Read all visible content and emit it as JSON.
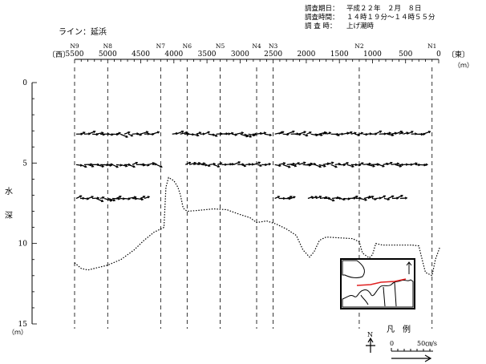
{
  "header": {
    "line_label": "ライン：延浜",
    "survey_date_key": "調査期日：",
    "survey_date_val": "平成２２年　２月　８日",
    "survey_time_key": "調査時間：",
    "survey_time_val": "１４時１９分～１４時５５分",
    "survey_tide_key": "調 査 時：",
    "survey_tide_val": "上げ潮時"
  },
  "axis_text": {
    "west": "〔西〕",
    "east": "〔東〕",
    "unit_m_top": "（ｍ）",
    "depth_label_1": "水",
    "depth_label_2": "深",
    "unit_m_bottom": "（ｍ）"
  },
  "legend": {
    "title": "凡　例",
    "north": "N",
    "scale_zero": "0",
    "scale_value": "50㎝/s"
  },
  "colors": {
    "ink": "#000000",
    "map_line": "#e02020",
    "map_fill": "#ffffff"
  },
  "chart_data": {
    "type": "vector_section",
    "xlim": [
      5500,
      0
    ],
    "ylim": [
      0,
      15
    ],
    "x_ticks": [
      5500,
      5000,
      4500,
      4000,
      3500,
      3000,
      2500,
      2000,
      1500,
      1000,
      500,
      0
    ],
    "y_ticks": [
      0,
      5,
      10,
      15
    ],
    "stations": [
      {
        "name": "N9",
        "x": 5500
      },
      {
        "name": "N8",
        "x": 5000
      },
      {
        "name": "N7",
        "x": 4200
      },
      {
        "name": "N6",
        "x": 3800
      },
      {
        "name": "N5",
        "x": 3300
      },
      {
        "name": "N4",
        "x": 2750
      },
      {
        "name": "N3",
        "x": 2500
      },
      {
        "name": "N2",
        "x": 1200
      },
      {
        "name": "N1",
        "x": 100
      }
    ],
    "current_layers": [
      {
        "depth": 3.2,
        "segments": [
          [
            5500,
            4250
          ],
          [
            4050,
            2550
          ],
          [
            2500,
            150
          ]
        ]
      },
      {
        "depth": 5.1,
        "segments": [
          [
            5500,
            4200
          ],
          [
            3850,
            2550
          ],
          [
            2500,
            150
          ]
        ]
      },
      {
        "depth": 7.2,
        "segments": [
          [
            5500,
            4400
          ],
          [
            2500,
            2200
          ],
          [
            2000,
            550
          ]
        ]
      }
    ],
    "seabed_profile": [
      [
        5500,
        11.2
      ],
      [
        5400,
        11.55
      ],
      [
        5300,
        11.65
      ],
      [
        5150,
        11.5
      ],
      [
        5000,
        11.35
      ],
      [
        4800,
        11.0
      ],
      [
        4600,
        10.4
      ],
      [
        4450,
        9.8
      ],
      [
        4300,
        9.3
      ],
      [
        4150,
        9.0
      ],
      [
        4120,
        6.5
      ],
      [
        4080,
        5.9
      ],
      [
        4000,
        6.1
      ],
      [
        3940,
        6.5
      ],
      [
        3900,
        7.0
      ],
      [
        3860,
        7.8
      ],
      [
        3800,
        8.0
      ],
      [
        3650,
        7.95
      ],
      [
        3400,
        7.85
      ],
      [
        3200,
        7.9
      ],
      [
        3000,
        8.2
      ],
      [
        2850,
        8.4
      ],
      [
        2750,
        8.7
      ],
      [
        2600,
        8.6
      ],
      [
        2450,
        8.8
      ],
      [
        2300,
        9.1
      ],
      [
        2150,
        9.5
      ],
      [
        2050,
        10.4
      ],
      [
        1950,
        10.85
      ],
      [
        1880,
        10.5
      ],
      [
        1800,
        9.8
      ],
      [
        1700,
        9.6
      ],
      [
        1500,
        9.65
      ],
      [
        1300,
        9.7
      ],
      [
        1200,
        9.9
      ],
      [
        1150,
        10.6
      ],
      [
        1050,
        10.9
      ],
      [
        1000,
        10.7
      ],
      [
        950,
        10.0
      ],
      [
        850,
        10.1
      ],
      [
        600,
        10.1
      ],
      [
        400,
        10.1
      ],
      [
        300,
        10.15
      ],
      [
        250,
        11.0
      ],
      [
        200,
        11.8
      ],
      [
        100,
        12.0
      ],
      [
        50,
        11.0
      ],
      [
        -20,
        10.2
      ]
    ]
  }
}
